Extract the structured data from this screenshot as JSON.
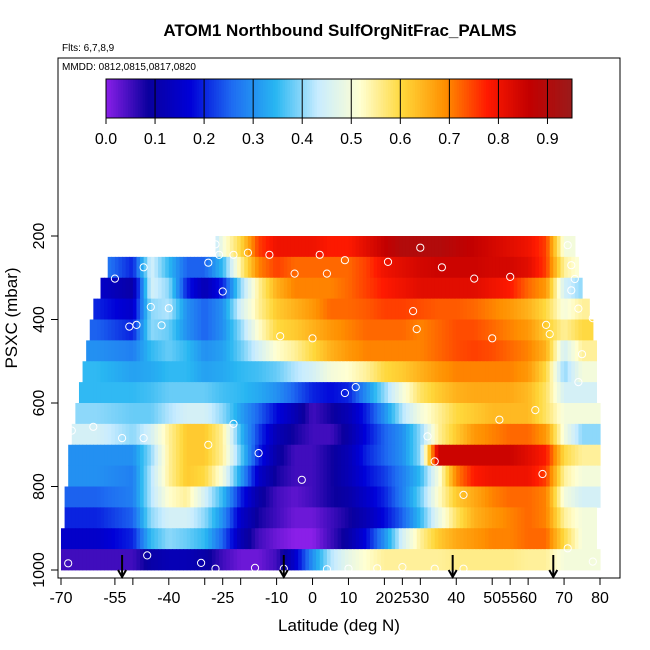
{
  "chart_data": {
    "type": "heatmap",
    "title": "ATOM1 Northbound SulfOrgNitFrac_PALMS",
    "subtitle_flights": "Flts: 6,7,8,9",
    "subtitle_dates": "MMDD: 0812,0815,0817,0820",
    "xlabel": "Latitude (deg N)",
    "ylabel": "PSXC (mbar)",
    "xlim": [
      -70,
      80
    ],
    "ylim": [
      1000,
      100
    ],
    "x_ticks": [
      "-70",
      "-55",
      "-40",
      "-25",
      "-10",
      "10",
      "25",
      "40",
      "55",
      "70"
    ],
    "x_ticks_minor": [
      "-50",
      "-30",
      "-20",
      "0",
      "20",
      "30",
      "50",
      "60",
      "80"
    ],
    "y_ticks": [
      "200",
      "400",
      "600",
      "800",
      "1000"
    ],
    "colorbar": {
      "min": 0.0,
      "max": 0.95,
      "ticks": [
        "0.0",
        "0.1",
        "0.2",
        "0.3",
        "0.4",
        "0.5",
        "0.6",
        "0.7",
        "0.8",
        "0.9"
      ],
      "colors": [
        "#8a1fe8",
        "#0a009e",
        "#0000d8",
        "#1f6ef2",
        "#28b6f2",
        "#c8ecff",
        "#ffffd2",
        "#ffd73a",
        "#ff8f00",
        "#ff1a00",
        "#c20000",
        "#9b1b1b"
      ]
    },
    "pressure_levels": [
      225,
      275,
      325,
      375,
      425,
      475,
      525,
      575,
      625,
      675,
      725,
      775,
      825,
      875,
      925,
      975
    ],
    "row_extent": [
      [
        -27,
        73
      ],
      [
        -57,
        74
      ],
      [
        -59,
        75
      ],
      [
        -61,
        77
      ],
      [
        -62,
        78
      ],
      [
        -63,
        79
      ],
      [
        -64,
        79
      ],
      [
        -65,
        79
      ],
      [
        -66,
        80
      ],
      [
        -67,
        80
      ],
      [
        -68,
        80
      ],
      [
        -68,
        80
      ],
      [
        -69,
        80
      ],
      [
        -69,
        79
      ],
      [
        -70,
        79
      ],
      [
        -70,
        80
      ]
    ],
    "field_samples": {
      "latitude": [
        -70,
        -60,
        -50,
        -45,
        -40,
        -35,
        -30,
        -25,
        -20,
        -15,
        -10,
        -5,
        0,
        5,
        10,
        15,
        20,
        25,
        30,
        35,
        40,
        45,
        50,
        55,
        60,
        65,
        70,
        75,
        80
      ],
      "values": [
        [
          0.3,
          0.3,
          0.3,
          0.3,
          0.3,
          0.3,
          0.32,
          0.5,
          0.6,
          0.75,
          0.8,
          0.8,
          0.8,
          0.78,
          0.78,
          0.82,
          0.86,
          0.9,
          0.9,
          0.9,
          0.88,
          0.86,
          0.84,
          0.82,
          0.8,
          0.75,
          0.5,
          0.5,
          0.5
        ],
        [
          0.3,
          0.3,
          0.2,
          0.45,
          0.35,
          0.25,
          0.25,
          0.35,
          0.55,
          0.7,
          0.75,
          0.72,
          0.72,
          0.72,
          0.72,
          0.75,
          0.8,
          0.82,
          0.84,
          0.85,
          0.85,
          0.85,
          0.84,
          0.84,
          0.82,
          0.75,
          0.55,
          0.5,
          0.5
        ],
        [
          0.15,
          0.15,
          0.1,
          0.45,
          0.4,
          0.2,
          0.12,
          0.2,
          0.4,
          0.55,
          0.65,
          0.7,
          0.7,
          0.7,
          0.72,
          0.75,
          0.78,
          0.8,
          0.82,
          0.82,
          0.82,
          0.82,
          0.8,
          0.78,
          0.72,
          0.68,
          0.45,
          0.4,
          0.4
        ],
        [
          0.2,
          0.2,
          0.15,
          0.4,
          0.42,
          0.3,
          0.25,
          0.3,
          0.45,
          0.55,
          0.62,
          0.65,
          0.68,
          0.72,
          0.72,
          0.73,
          0.75,
          0.75,
          0.74,
          0.73,
          0.73,
          0.72,
          0.7,
          0.68,
          0.65,
          0.6,
          0.5,
          0.55,
          0.55
        ],
        [
          0.25,
          0.25,
          0.2,
          0.4,
          0.38,
          0.3,
          0.25,
          0.3,
          0.4,
          0.52,
          0.6,
          0.62,
          0.65,
          0.68,
          0.7,
          0.72,
          0.72,
          0.72,
          0.7,
          0.72,
          0.74,
          0.74,
          0.72,
          0.7,
          0.68,
          0.62,
          0.55,
          0.6,
          0.6
        ],
        [
          0.3,
          0.3,
          0.28,
          0.35,
          0.38,
          0.35,
          0.3,
          0.32,
          0.38,
          0.45,
          0.52,
          0.55,
          0.6,
          0.65,
          0.68,
          0.7,
          0.7,
          0.7,
          0.7,
          0.72,
          0.74,
          0.75,
          0.74,
          0.72,
          0.7,
          0.65,
          0.45,
          0.55,
          0.55
        ],
        [
          0.35,
          0.35,
          0.32,
          0.33,
          0.35,
          0.35,
          0.32,
          0.33,
          0.35,
          0.36,
          0.38,
          0.42,
          0.45,
          0.5,
          0.52,
          0.55,
          0.6,
          0.62,
          0.65,
          0.68,
          0.7,
          0.7,
          0.7,
          0.7,
          0.68,
          0.6,
          0.4,
          0.5,
          0.5
        ],
        [
          0.35,
          0.35,
          0.35,
          0.36,
          0.38,
          0.38,
          0.38,
          0.36,
          0.35,
          0.33,
          0.3,
          0.25,
          0.2,
          0.18,
          0.2,
          0.3,
          0.4,
          0.5,
          0.58,
          0.62,
          0.65,
          0.66,
          0.66,
          0.66,
          0.64,
          0.58,
          0.45,
          0.45,
          0.45
        ],
        [
          0.4,
          0.4,
          0.38,
          0.38,
          0.42,
          0.45,
          0.45,
          0.4,
          0.32,
          0.25,
          0.18,
          0.12,
          0.05,
          0.08,
          0.12,
          0.2,
          0.3,
          0.42,
          0.5,
          0.55,
          0.6,
          0.62,
          0.64,
          0.64,
          0.64,
          0.58,
          0.5,
          0.5,
          0.5
        ],
        [
          0.45,
          0.45,
          0.4,
          0.45,
          0.55,
          0.62,
          0.62,
          0.55,
          0.35,
          0.22,
          0.12,
          0.08,
          0.05,
          0.05,
          0.1,
          0.18,
          0.25,
          0.3,
          0.4,
          0.55,
          0.62,
          0.68,
          0.7,
          0.72,
          0.72,
          0.68,
          0.5,
          0.4,
          0.4
        ],
        [
          0.3,
          0.3,
          0.3,
          0.4,
          0.55,
          0.62,
          0.62,
          0.55,
          0.38,
          0.2,
          0.1,
          0.05,
          0.05,
          0.08,
          0.12,
          0.2,
          0.25,
          0.3,
          0.4,
          0.85,
          0.85,
          0.85,
          0.85,
          0.85,
          0.82,
          0.78,
          0.6,
          0.55,
          0.55
        ],
        [
          0.3,
          0.3,
          0.28,
          0.42,
          0.55,
          0.62,
          0.6,
          0.5,
          0.32,
          0.15,
          0.08,
          0.05,
          0.05,
          0.08,
          0.12,
          0.18,
          0.22,
          0.28,
          0.35,
          0.5,
          0.7,
          0.78,
          0.8,
          0.8,
          0.8,
          0.75,
          0.55,
          0.5,
          0.5
        ],
        [
          0.25,
          0.25,
          0.28,
          0.42,
          0.52,
          0.55,
          0.45,
          0.35,
          0.2,
          0.1,
          0.05,
          0.03,
          0.05,
          0.08,
          0.1,
          0.15,
          0.2,
          0.28,
          0.38,
          0.52,
          0.62,
          0.66,
          0.7,
          0.72,
          0.72,
          0.7,
          0.5,
          0.45,
          0.45
        ],
        [
          0.2,
          0.2,
          0.25,
          0.4,
          0.45,
          0.45,
          0.4,
          0.3,
          0.15,
          0.08,
          0.05,
          0.02,
          0.02,
          0.05,
          0.08,
          0.12,
          0.18,
          0.25,
          0.35,
          0.48,
          0.58,
          0.65,
          0.68,
          0.7,
          0.72,
          0.7,
          0.55,
          0.5,
          0.5
        ],
        [
          0.15,
          0.15,
          0.2,
          0.35,
          0.4,
          0.38,
          0.35,
          0.25,
          0.12,
          0.05,
          0.02,
          0.0,
          0.0,
          0.05,
          0.1,
          0.18,
          0.3,
          0.45,
          0.55,
          0.62,
          0.66,
          0.68,
          0.7,
          0.7,
          0.72,
          0.72,
          0.6,
          0.5,
          0.5
        ],
        [
          0.05,
          0.05,
          0.05,
          0.1,
          0.12,
          0.12,
          0.1,
          0.05,
          0.02,
          0.02,
          0.05,
          0.15,
          0.3,
          0.42,
          0.48,
          0.52,
          0.55,
          0.55,
          0.55,
          0.55,
          0.56,
          0.56,
          0.56,
          0.56,
          0.55,
          0.55,
          0.5,
          0.5,
          0.5
        ]
      ]
    },
    "sample_points": [
      [
        -27,
        220
      ],
      [
        -26,
        245
      ],
      [
        -22,
        245
      ],
      [
        -18,
        240
      ],
      [
        -12,
        245
      ],
      [
        2,
        245
      ],
      [
        9,
        258
      ],
      [
        21,
        262
      ],
      [
        30,
        228
      ],
      [
        36,
        275
      ],
      [
        71,
        222
      ],
      [
        -55,
        302
      ],
      [
        -47,
        275
      ],
      [
        -29,
        264
      ],
      [
        -5,
        290
      ],
      [
        4,
        290
      ],
      [
        45,
        302
      ],
      [
        55,
        298
      ],
      [
        72,
        270
      ],
      [
        73,
        303
      ],
      [
        -25,
        333
      ],
      [
        -45,
        370
      ],
      [
        -40,
        373
      ],
      [
        72,
        330
      ],
      [
        74,
        374
      ],
      [
        28,
        380
      ],
      [
        -51,
        417
      ],
      [
        -49,
        413
      ],
      [
        -42,
        414
      ],
      [
        29,
        423
      ],
      [
        -9,
        440
      ],
      [
        0,
        445
      ],
      [
        65,
        413
      ],
      [
        66,
        435
      ],
      [
        50,
        445
      ],
      [
        78,
        397
      ],
      [
        75,
        483
      ],
      [
        74,
        550
      ],
      [
        9,
        576
      ],
      [
        12,
        562
      ],
      [
        -61,
        657
      ],
      [
        -67,
        666
      ],
      [
        -53,
        684
      ],
      [
        -47,
        684
      ],
      [
        -29,
        700
      ],
      [
        -22,
        650
      ],
      [
        -15,
        720
      ],
      [
        32,
        680
      ],
      [
        62,
        617
      ],
      [
        52,
        640
      ],
      [
        34,
        740
      ],
      [
        64,
        770
      ],
      [
        -3,
        784
      ],
      [
        42,
        820
      ],
      [
        -68,
        984
      ],
      [
        -46,
        965
      ],
      [
        -31,
        983
      ],
      [
        -27,
        997
      ],
      [
        -16,
        995
      ],
      [
        -8,
        997
      ],
      [
        4,
        998
      ],
      [
        10,
        997
      ],
      [
        18,
        996
      ],
      [
        25,
        993
      ],
      [
        34,
        997
      ],
      [
        42,
        997
      ],
      [
        71,
        948
      ],
      [
        78,
        980
      ]
    ],
    "arrows_latitude": [
      -53,
      -8,
      39,
      67
    ]
  }
}
